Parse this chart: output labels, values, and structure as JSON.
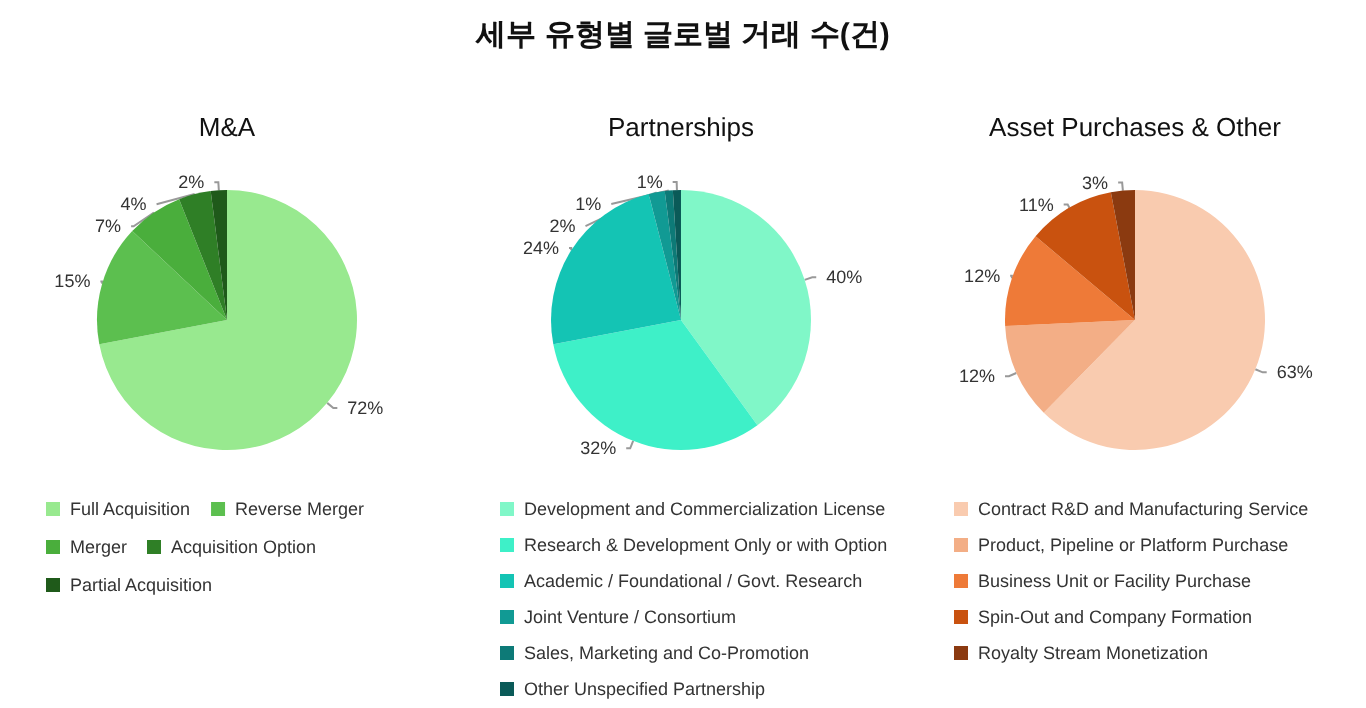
{
  "chart_data": [
    {
      "type": "pie",
      "subtitle": "M&A",
      "categories": [
        "Full Acquisition",
        "Reverse Merger",
        "Merger",
        "Acquisition Option",
        "Partial Acquisition"
      ],
      "values": [
        72,
        15,
        7,
        4,
        2
      ],
      "value_labels": [
        "72%",
        "15%",
        "7%",
        "4%",
        "2%"
      ],
      "colors": [
        "#98e98f",
        "#5cbf4f",
        "#4aae3c",
        "#2f7f26",
        "#1f5a1a"
      ],
      "legend": "bottom"
    },
    {
      "type": "pie",
      "title": "세부 유형별 글로벌 거래 수(건)",
      "subtitle": "Partnerships",
      "categories": [
        "Development and Commercialization License",
        "Research & Development Only or with Option",
        "Academic / Foundational / Govt. Research",
        "Joint Venture / Consortium",
        "Sales, Marketing and Co-Promotion",
        "Other Unspecified Partnership"
      ],
      "values": [
        40,
        32,
        24,
        2,
        1,
        1
      ],
      "value_labels": [
        "40%",
        "32%",
        "24%",
        "2%",
        "1%",
        "1%"
      ],
      "colors": [
        "#80f7c8",
        "#3ef0c8",
        "#14c4b4",
        "#119a94",
        "#0d7a77",
        "#0a5a58"
      ],
      "legend": "bottom"
    },
    {
      "type": "pie",
      "subtitle": "Asset Purchases & Other",
      "categories": [
        "Contract R&D and Manufacturing Service",
        "Product, Pipeline or Platform Purchase",
        "Business Unit or Facility Purchase",
        "Spin-Out and Company Formation",
        "Royalty Stream Monetization"
      ],
      "values": [
        63,
        12,
        12,
        11,
        3
      ],
      "value_labels": [
        "63%",
        "12%",
        "12%",
        "11%",
        "3%"
      ],
      "colors": [
        "#f9cbaf",
        "#f3ae86",
        "#ee7a38",
        "#c9520f",
        "#8b3a10"
      ],
      "legend": "bottom"
    }
  ]
}
